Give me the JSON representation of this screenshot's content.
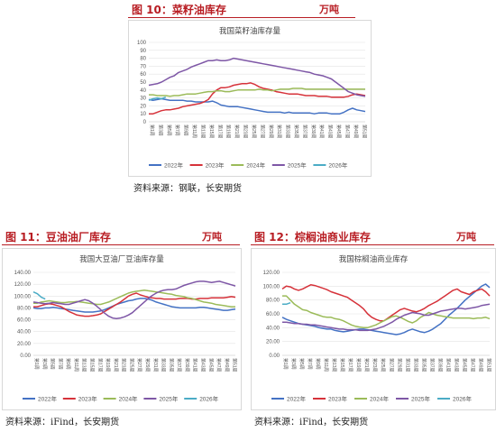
{
  "panels": [
    {
      "header_title": "图 10：菜籽油库存",
      "header_unit": "万吨",
      "source": "资料来源：钢联，长安期货",
      "chart_data": {
        "type": "line",
        "title": "我国菜籽油库存量",
        "xlabel": "",
        "ylabel": "",
        "ylim": [
          0,
          100
        ],
        "y_ticks": [
          0,
          10,
          20,
          30,
          40,
          50,
          60,
          70,
          80,
          90,
          100
        ],
        "x_ticks": [
          "第1周",
          "第3周",
          "第5周",
          "第7周",
          "第9周",
          "第11周",
          "第13周",
          "第15周",
          "第17周",
          "第19周",
          "第21周",
          "第23周",
          "第25周",
          "第27周",
          "第29周",
          "第31周",
          "第33周",
          "第35周",
          "第37周",
          "第39周",
          "第41周",
          "第43周",
          "第45周",
          "第47周",
          "第49周",
          "第51周"
        ],
        "grid": true,
        "legend": "bottom",
        "series": [
          {
            "name": "2022年",
            "color": "#4472c4",
            "values": [
              28,
              27,
              28,
              29,
              28,
              27,
              27,
              27,
              27,
              26,
              26,
              25,
              25,
              25,
              25,
              26,
              24,
              21,
              20,
              19,
              19,
              19,
              18,
              17,
              16,
              15,
              14,
              13,
              12,
              12,
              12,
              12,
              11,
              12,
              11,
              11,
              11,
              11,
              11,
              10,
              11,
              11,
              11,
              10,
              10,
              10,
              12,
              15,
              17,
              15,
              14,
              13
            ]
          },
          {
            "name": "2023年",
            "color": "#d6323a",
            "values": [
              10,
              10,
              12,
              14,
              15,
              15,
              16,
              17,
              19,
              20,
              21,
              22,
              23,
              25,
              28,
              35,
              40,
              43,
              43,
              44,
              46,
              47,
              48,
              48,
              49,
              47,
              44,
              42,
              41,
              40,
              38,
              37,
              36,
              35,
              35,
              35,
              34,
              33,
              33,
              33,
              32,
              32,
              32,
              31,
              31,
              31,
              31,
              32,
              34,
              35,
              34,
              33
            ]
          },
          {
            "name": "2024年",
            "color": "#9bbb59",
            "values": [
              34,
              34,
              33,
              33,
              33,
              32,
              33,
              33,
              34,
              35,
              35,
              35,
              36,
              37,
              38,
              38,
              39,
              39,
              38,
              38,
              39,
              40,
              40,
              40,
              40,
              40,
              41,
              40,
              40,
              39,
              40,
              41,
              41,
              41,
              42,
              42,
              42,
              41,
              41,
              41,
              41,
              41,
              41,
              41,
              41,
              41,
              41,
              41,
              41,
              41,
              41,
              41
            ]
          },
          {
            "name": "2025年",
            "color": "#7e57a6",
            "values": [
              46,
              47,
              48,
              50,
              53,
              56,
              58,
              62,
              64,
              66,
              69,
              71,
              73,
              75,
              77,
              77,
              78,
              77,
              77,
              78,
              80,
              79,
              78,
              77,
              76,
              75,
              74,
              73,
              72,
              71,
              70,
              69,
              68,
              67,
              66,
              65,
              64,
              63,
              62,
              60,
              59,
              58,
              56,
              54,
              50,
              46,
              42,
              38,
              36,
              34,
              33,
              32
            ]
          },
          {
            "name": "2026年",
            "color": "#4bacc6",
            "values": [
              27,
              29,
              30,
              29,
              31
            ]
          }
        ]
      }
    },
    {
      "header_title": "图 11：豆油油厂库存",
      "header_unit": "万吨",
      "source": "资料来源：iFind，长安期货",
      "chart_data": {
        "type": "line",
        "title": "我国大豆油厂豆油库存量",
        "xlabel": "",
        "ylabel": "",
        "ylim": [
          0,
          140
        ],
        "y_ticks": [
          "0.00",
          "20.00",
          "40.00",
          "60.00",
          "80.00",
          "100.00",
          "120.00",
          "140.00"
        ],
        "x_ticks": [
          "第1周",
          "第3周",
          "第5周",
          "第7周",
          "第9周",
          "第11周",
          "第13周",
          "第15周",
          "第17周",
          "第19周",
          "第21周",
          "第23周",
          "第25周",
          "第27周",
          "第29周",
          "第31周",
          "第33周",
          "第35周",
          "第37周",
          "第39周",
          "第41周",
          "第43周",
          "第45周",
          "第47周",
          "第49周",
          "第51周"
        ],
        "grid": true,
        "legend": "bottom",
        "series": [
          {
            "name": "2022年",
            "color": "#4472c4",
            "values": [
              80,
              79,
              79,
              80,
              80,
              81,
              80,
              79,
              78,
              77,
              76,
              75,
              74,
              73,
              73,
              73,
              74,
              75,
              77,
              80,
              83,
              86,
              88,
              90,
              92,
              93,
              95,
              96,
              96,
              95,
              93,
              90,
              88,
              86,
              84,
              82,
              81,
              80,
              80,
              80,
              80,
              80,
              81,
              81,
              80,
              79,
              78,
              77,
              76,
              76,
              77,
              78
            ]
          },
          {
            "name": "2023年",
            "color": "#d6323a",
            "values": [
              82,
              82,
              84,
              86,
              87,
              86,
              84,
              82,
              78,
              74,
              71,
              68,
              67,
              66,
              66,
              67,
              68,
              70,
              74,
              78,
              82,
              86,
              90,
              95,
              100,
              103,
              105,
              102,
              100,
              98,
              97,
              96,
              96,
              95,
              95,
              95,
              95,
              96,
              96,
              96,
              95,
              95,
              96,
              96,
              96,
              97,
              97,
              97,
              97,
              98,
              99,
              98
            ]
          },
          {
            "name": "2024年",
            "color": "#9bbb59",
            "values": [
              88,
              88,
              90,
              91,
              92,
              91,
              90,
              89,
              89,
              90,
              90,
              91,
              90,
              89,
              88,
              87,
              86,
              86,
              88,
              90,
              93,
              96,
              99,
              102,
              105,
              107,
              108,
              109,
              110,
              109,
              108,
              107,
              106,
              105,
              104,
              103,
              101,
              100,
              99,
              97,
              96,
              94,
              92,
              90,
              89,
              88,
              86,
              85,
              84,
              83,
              82,
              82
            ]
          },
          {
            "name": "2025年",
            "color": "#7e57a6",
            "values": [
              90,
              89,
              88,
              87,
              88,
              89,
              88,
              87,
              86,
              86,
              88,
              90,
              92,
              94,
              92,
              88,
              83,
              77,
              71,
              66,
              63,
              62,
              63,
              65,
              68,
              72,
              78,
              84,
              90,
              96,
              101,
              105,
              108,
              110,
              111,
              111,
              112,
              115,
              118,
              120,
              122,
              124,
              125,
              125,
              124,
              123,
              124,
              125,
              123,
              121,
              119,
              117
            ]
          },
          {
            "name": "2026年",
            "color": "#4bacc6",
            "values": [
              107,
              104,
              98,
              95
            ]
          }
        ]
      }
    },
    {
      "header_title": "图 12：棕榈油商业库存",
      "header_unit": "万吨",
      "source": "资料来源：iFind，长安期货",
      "chart_data": {
        "type": "line",
        "title": "我国棕榈油商业库存",
        "xlabel": "",
        "ylabel": "",
        "ylim": [
          0,
          120
        ],
        "y_ticks": [
          "0.00",
          "20.00",
          "40.00",
          "60.00",
          "80.00",
          "100.00",
          "120.00"
        ],
        "x_ticks": [
          "第1周",
          "第3周",
          "第5周",
          "第7周",
          "第9周",
          "第11周",
          "第13周",
          "第15周",
          "第17周",
          "第19周",
          "第21周",
          "第23周",
          "第25周",
          "第27周",
          "第29周",
          "第31周",
          "第33周",
          "第35周",
          "第37周",
          "第39周",
          "第41周",
          "第43周",
          "第45周",
          "第47周",
          "第49周",
          "第51周"
        ],
        "grid": true,
        "legend": "bottom",
        "series": [
          {
            "name": "2022年",
            "color": "#4472c4",
            "values": [
              55,
              52,
              50,
              48,
              46,
              45,
              44,
              43,
              42,
              40,
              39,
              38,
              38,
              36,
              35,
              34,
              35,
              36,
              37,
              38,
              38,
              37,
              36,
              35,
              34,
              33,
              32,
              31,
              30,
              31,
              33,
              36,
              38,
              36,
              34,
              33,
              35,
              38,
              42,
              46,
              52,
              58,
              63,
              68,
              74,
              80,
              85,
              90,
              95,
              100,
              103,
              98
            ]
          },
          {
            "name": "2023年",
            "color": "#d6323a",
            "values": [
              96,
              100,
              99,
              96,
              94,
              96,
              99,
              102,
              101,
              99,
              97,
              95,
              92,
              90,
              88,
              86,
              84,
              80,
              76,
              72,
              67,
              60,
              55,
              52,
              50,
              50,
              54,
              58,
              62,
              66,
              68,
              66,
              64,
              63,
              65,
              68,
              72,
              75,
              78,
              82,
              86,
              90,
              94,
              96,
              92,
              90,
              88,
              92,
              94,
              96,
              92,
              86
            ]
          },
          {
            "name": "2024年",
            "color": "#9bbb59",
            "values": [
              86,
              86,
              80,
              74,
              70,
              66,
              65,
              62,
              60,
              58,
              56,
              55,
              55,
              53,
              52,
              50,
              47,
              44,
              42,
              41,
              40,
              40,
              42,
              44,
              47,
              50,
              53,
              56,
              57,
              55,
              52,
              49,
              47,
              50,
              55,
              58,
              62,
              60,
              58,
              57,
              56,
              55,
              54,
              54,
              54,
              54,
              54,
              53,
              54,
              54,
              55,
              53
            ]
          },
          {
            "name": "2025年",
            "color": "#7e57a6",
            "values": [
              48,
              48,
              47,
              46,
              46,
              45,
              45,
              44,
              44,
              43,
              42,
              41,
              40,
              39,
              38,
              38,
              37,
              37,
              37,
              36,
              36,
              36,
              37,
              38,
              40,
              42,
              45,
              48,
              52,
              55,
              58,
              60,
              62,
              61,
              60,
              58,
              58,
              60,
              62,
              64,
              65,
              66,
              67,
              68,
              68,
              67,
              68,
              69,
              70,
              72,
              73,
              74
            ]
          },
          {
            "name": "2026年",
            "color": "#4bacc6",
            "values": [
              74,
              74,
              76
            ]
          }
        ]
      }
    }
  ]
}
